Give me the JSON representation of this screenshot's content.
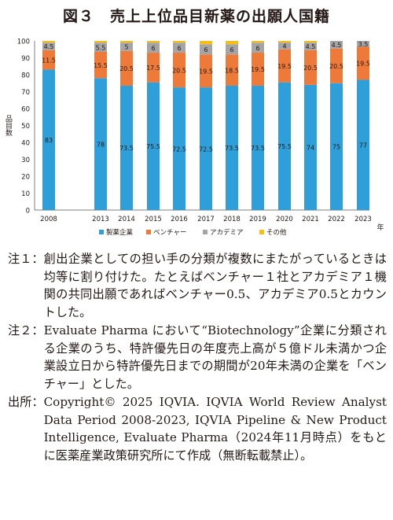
{
  "title": "図３　売上上位品目新薬の出願人国籍",
  "chart_data": {
    "type": "bar",
    "stacked": true,
    "categories": [
      "2008",
      "2013",
      "2014",
      "2015",
      "2016",
      "2017",
      "2018",
      "2019",
      "2020",
      "2021",
      "2022",
      "2023"
    ],
    "ylabel": "品目数",
    "xlabel": "",
    "x_unit": "年",
    "ylim": [
      0,
      100
    ],
    "yticks": [
      0,
      10,
      20,
      30,
      40,
      50,
      60,
      70,
      80,
      90,
      100
    ],
    "grid": false,
    "legend_position": "bottom",
    "series": [
      {
        "name": "製薬企業",
        "color": "#2e9fd8",
        "values": [
          83,
          78,
          73.5,
          75.5,
          72.5,
          72.5,
          73.5,
          73.5,
          75.5,
          74,
          75,
          77
        ],
        "labels": [
          "83",
          "78",
          "73.5",
          "75.5",
          "72.5",
          "72.5",
          "73.5",
          "73.5",
          "75.5",
          "74",
          "75",
          "77"
        ]
      },
      {
        "name": "ベンチャー",
        "color": "#ee7a3a",
        "values": [
          11.5,
          15.5,
          20.5,
          17.5,
          20.5,
          19.5,
          18.5,
          19.5,
          19.5,
          20.5,
          20.5,
          19.5
        ],
        "labels": [
          "11.5",
          "15.5",
          "20.5",
          "17.5",
          "20.5",
          "19.5",
          "18.5",
          "19.5",
          "19.5",
          "20.5",
          "20.5",
          "19.5"
        ]
      },
      {
        "name": "アカデミア",
        "color": "#a5a5a5",
        "values": [
          4.5,
          5.5,
          5,
          6,
          6,
          6,
          6,
          6,
          4,
          4.5,
          4.5,
          3.5
        ],
        "labels": [
          "4.5",
          "5.5",
          "5",
          "6",
          "6",
          "6",
          "6",
          "6",
          "4",
          "4.5",
          "4.5",
          "3.5"
        ]
      },
      {
        "name": "その他",
        "color": "#f7be16",
        "values": [
          1,
          1,
          1,
          1,
          1,
          2,
          2,
          1,
          1,
          1,
          0,
          0
        ],
        "labels": [
          "",
          "",
          "",
          "",
          "",
          "",
          "",
          "",
          "",
          "",
          "",
          ""
        ]
      }
    ]
  },
  "notes": [
    {
      "label": "注１：",
      "text": "創出企業としての担い手の分類が複数にまたがっているときは均等に割り付けた。たとえばベンチャー１社とアカデミア１機関の共同出願であればベンチャー0.5、アカデミア0.5とカウントした。"
    },
    {
      "label": "注２：",
      "text": "Evaluate Pharma において“Biotechnology”企業に分類される企業のうち、特許優先日の年度売上高が５億ドル未満かつ企業設立日から特許優先日までの期間が20年未満の企業を「ベンチャー」とした。"
    },
    {
      "label": "出所：",
      "text": "Copyright© 2025 IQVIA. IQVIA World Review Analyst Data Period 2008-2023, IQVIA Pipeline & New Product Intelligence, Evaluate Pharma（2024年11月時点）をもとに医薬産業政策研究所にて作成（無断転載禁止）。"
    }
  ]
}
